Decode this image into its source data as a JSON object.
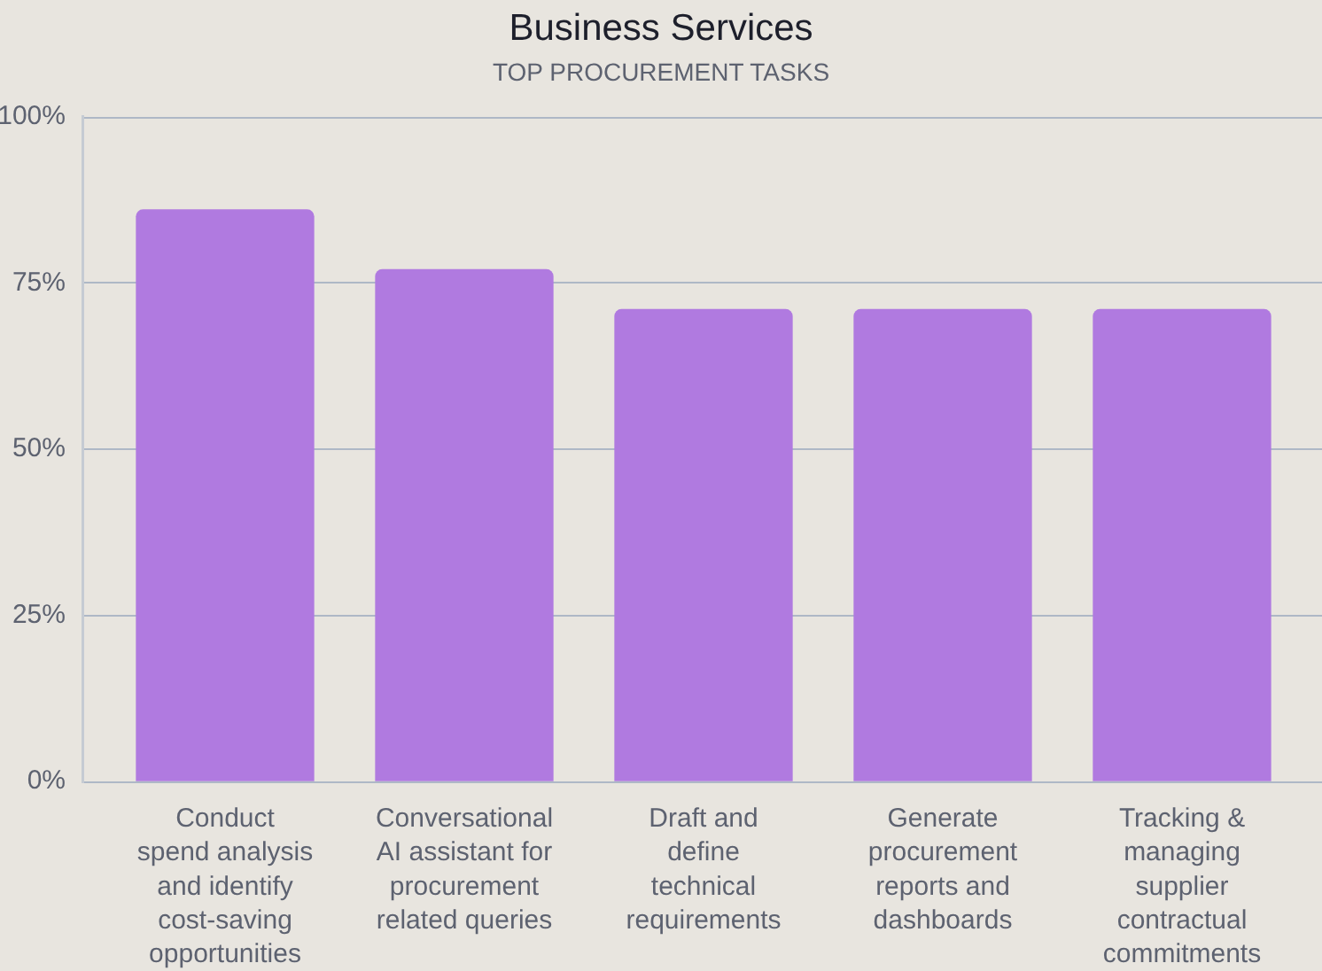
{
  "chart_data": {
    "type": "bar",
    "title": "Business Services",
    "subtitle": "TOP PROCUREMENT TASKS",
    "categories": [
      "Conduct spend analysis and identify cost-saving opportunities",
      "Conversational AI assistant for procurement related queries",
      "Draft and define technical requirements",
      "Generate procurement reports and dashboards",
      "Tracking & managing supplier contractual commitments"
    ],
    "values": [
      86,
      77,
      71,
      71,
      71
    ],
    "color": "#b07ae0",
    "ylim": [
      0,
      100
    ],
    "yticks": [
      {
        "value": 0,
        "label": "0%"
      },
      {
        "value": 25,
        "label": "25%"
      },
      {
        "value": 50,
        "label": "50%"
      },
      {
        "value": 75,
        "label": "75%"
      },
      {
        "value": 100,
        "label": "100%"
      }
    ],
    "grid": "y"
  }
}
